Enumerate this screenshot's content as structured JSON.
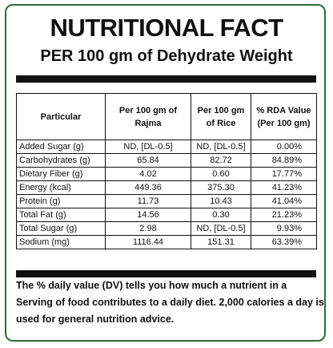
{
  "header": {
    "title": "NUTRITIONAL FACT",
    "subtitle": "PER 100 gm of Dehydrate Weight"
  },
  "table": {
    "headers": [
      "Particular",
      "Per 100 gm of Rajma",
      "Per 100 gm of Rice",
      "% RDA Value (Per 100 gm)"
    ],
    "rows": [
      [
        "Added Sugar (g)",
        "ND, [DL-0.5]",
        "ND, [DL-0.5]",
        "0.00%"
      ],
      [
        "Carbohydrates (g)",
        "65.84",
        "82.72",
        "84.89%"
      ],
      [
        "Dietary Fiber (g)",
        "4.02",
        "0.60",
        "17.77%"
      ],
      [
        "Energy (kcal)",
        "449.36",
        "375.30",
        "41.23%"
      ],
      [
        "Protein (g)",
        "11.73",
        "10.43",
        "41.04%"
      ],
      [
        "Total Fat (g)",
        "14.56",
        "0.30",
        "21.23%"
      ],
      [
        "Total Sugar (g)",
        "2.98",
        "ND, [DL-0.5]",
        "9.93%"
      ],
      [
        "Sodium (mg)",
        "1116.44",
        "151.31",
        "63.39%"
      ]
    ]
  },
  "footer": {
    "note": "The % daily value (DV) tells you how much a nutrient in a Serving of food contributes to a daily diet. 2,000 calories a day is used for general nutrition advice."
  },
  "colors": {
    "border": "#2f6b3a",
    "text": "#111111"
  }
}
